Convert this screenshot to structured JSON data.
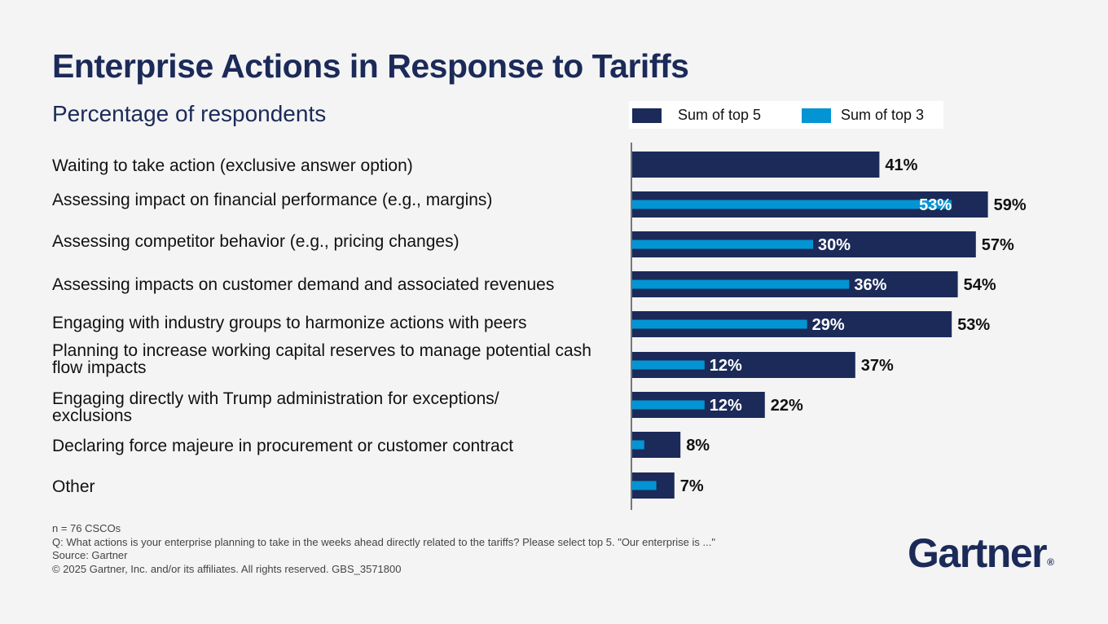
{
  "title": "Enterprise Actions in Response to Tariffs",
  "subtitle": "Percentage of respondents",
  "legend": {
    "top5": "Sum of top 5",
    "top3": "Sum of top 3"
  },
  "colors": {
    "top5": "#1b2a58",
    "top3": "#0394d4",
    "title": "#1b2a58"
  },
  "chart_data": {
    "type": "bar",
    "orientation": "horizontal",
    "categories": [
      "Waiting to take action (exclusive answer option)",
      "Assessing impact on financial performance (e.g., margins)",
      "Assessing competitor behavior (e.g., pricing changes)",
      "Assessing impacts on customer demand and associated revenues",
      "Engaging with industry groups to harmonize actions with peers",
      "Planning to increase working capital reserves to manage potential cash flow impacts",
      "Engaging directly with Trump administration for exceptions/ exclusions",
      "Declaring force majeure in procurement or customer contract",
      "Other"
    ],
    "series": [
      {
        "name": "Sum of top 5",
        "values": [
          41,
          59,
          57,
          54,
          53,
          37,
          22,
          8,
          7
        ]
      },
      {
        "name": "Sum of top 3",
        "values": [
          null,
          53,
          30,
          36,
          29,
          12,
          12,
          2,
          4
        ]
      }
    ],
    "data_labels": {
      "top5": [
        "41%",
        "59%",
        "57%",
        "54%",
        "53%",
        "37%",
        "22%",
        "8%",
        "7%"
      ],
      "top3": [
        "",
        "53%",
        "30%",
        "36%",
        "29%",
        "12%",
        "12%",
        "",
        ""
      ]
    },
    "xlim": [
      0,
      100
    ],
    "unit": "%",
    "legend_position": "top-right",
    "grid": false
  },
  "footnotes": [
    "n = 76 CSCOs",
    "Q: What actions is your enterprise planning to take in the weeks ahead directly related to the tariffs? Please select top 5.  \"Our enterprise is ...\"",
    "Source: Gartner",
    "© 2025 Gartner, Inc. and/or its affiliates. All rights reserved. GBS_3571800"
  ],
  "logo": {
    "text": "Gartner",
    "mark": "®"
  }
}
